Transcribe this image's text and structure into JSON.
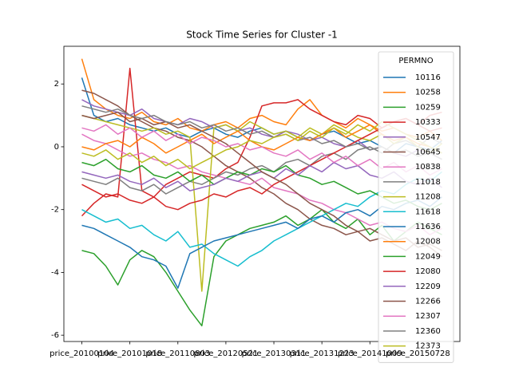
{
  "chart_data": {
    "type": "line",
    "title": "Stock Time Series for Cluster -1",
    "legend_title": "PERMNO",
    "legend": "upper right",
    "x": [
      0,
      50,
      100,
      150,
      200,
      250,
      300,
      350,
      400,
      450,
      500,
      550,
      600,
      650,
      700,
      750,
      800,
      850,
      900,
      950,
      1000,
      1050,
      1100,
      1150,
      1200,
      1250,
      1300,
      1350,
      1400,
      1450,
      1500
    ],
    "xlim": [
      -75,
      1575
    ],
    "xticks": [
      {
        "value": 0,
        "label": "price_20100104"
      },
      {
        "value": 200,
        "label": "price_20101018"
      },
      {
        "value": 400,
        "label": "price_20110803"
      },
      {
        "value": 600,
        "label": "price_20120521"
      },
      {
        "value": 800,
        "label": "price_20130311"
      },
      {
        "value": 1000,
        "label": "price_20131223"
      },
      {
        "value": 1200,
        "label": "price_20141009"
      },
      {
        "value": 1400,
        "label": "price_20150728"
      }
    ],
    "ylim": [
      -6.2,
      3.2
    ],
    "yticks": [
      -6,
      -4,
      -2,
      0,
      2
    ],
    "series": [
      {
        "name": "10116",
        "color": "#1f77b4",
        "values": [
          2.2,
          1.0,
          0.8,
          0.9,
          0.7,
          0.6,
          0.5,
          0.6,
          0.4,
          0.3,
          0.5,
          0.6,
          0.4,
          0.3,
          0.5,
          0.6,
          0.4,
          0.5,
          0.3,
          0.2,
          0.4,
          0.5,
          0.3,
          0.1,
          0.2,
          0.0,
          -0.2,
          0.1,
          0.0,
          -0.1,
          0.2
        ]
      },
      {
        "name": "10258",
        "color": "#ff7f0e",
        "values": [
          2.8,
          1.5,
          1.2,
          1.0,
          0.9,
          1.1,
          0.8,
          0.7,
          0.9,
          0.6,
          0.5,
          0.7,
          0.8,
          0.6,
          0.9,
          1.0,
          0.8,
          0.7,
          1.2,
          1.5,
          1.0,
          0.8,
          0.6,
          0.9,
          0.7,
          0.5,
          0.6,
          0.4,
          0.3,
          0.5,
          0.2
        ]
      },
      {
        "name": "10259",
        "color": "#2ca02c",
        "values": [
          -3.3,
          -3.4,
          -3.8,
          -4.4,
          -3.6,
          -3.3,
          -3.5,
          -4.0,
          -4.6,
          -5.2,
          -5.7,
          -3.5,
          -3.0,
          -2.8,
          -2.6,
          -2.5,
          -2.4,
          -2.2,
          -2.5,
          -2.3,
          -2.0,
          -2.4,
          -2.6,
          -2.3,
          -2.8,
          -2.5,
          -3.0,
          -2.7,
          -2.4,
          -2.6,
          -2.8
        ]
      },
      {
        "name": "10333",
        "color": "#d62728",
        "values": [
          -2.2,
          -1.8,
          -1.5,
          -1.6,
          2.5,
          -1.4,
          -1.6,
          -1.2,
          -1.0,
          -0.8,
          -0.9,
          -1.0,
          -0.7,
          -0.5,
          0.3,
          1.3,
          1.4,
          1.4,
          1.5,
          1.2,
          1.0,
          0.8,
          0.7,
          1.0,
          0.9,
          0.6,
          0.8,
          0.9,
          0.7,
          0.5,
          0.6
        ]
      },
      {
        "name": "10547",
        "color": "#9467bd",
        "values": [
          1.5,
          1.3,
          1.2,
          1.1,
          1.0,
          1.2,
          0.9,
          0.8,
          0.7,
          0.9,
          0.8,
          0.6,
          0.7,
          0.5,
          0.6,
          0.4,
          0.3,
          0.5,
          0.4,
          0.2,
          0.3,
          0.1,
          0.0,
          0.2,
          -0.1,
          0.0,
          -0.2,
          -0.3,
          -0.1,
          -0.2,
          -0.4
        ]
      },
      {
        "name": "10645",
        "color": "#8c564b",
        "values": [
          1.8,
          1.7,
          1.5,
          1.3,
          1.0,
          0.8,
          0.6,
          0.5,
          0.3,
          0.2,
          0.0,
          -0.3,
          -0.6,
          -0.8,
          -1.0,
          -1.3,
          -1.5,
          -1.8,
          -2.0,
          -2.3,
          -2.5,
          -2.6,
          -2.8,
          -2.7,
          -3.0,
          -2.9,
          -3.1,
          -3.3,
          -3.0,
          -3.2,
          -3.5
        ]
      },
      {
        "name": "10838",
        "color": "#e377c2",
        "values": [
          0.4,
          0.2,
          0.1,
          -0.1,
          -0.3,
          -0.2,
          -0.4,
          -0.5,
          -0.7,
          -0.6,
          -0.8,
          -0.9,
          -1.0,
          -1.1,
          -1.2,
          -1.0,
          -1.3,
          -1.4,
          -1.5,
          -1.7,
          -1.8,
          -2.0,
          -2.1,
          -2.3,
          -2.5,
          -2.4,
          -2.6,
          -2.7,
          -2.5,
          -2.8,
          -2.6
        ]
      },
      {
        "name": "11018",
        "color": "#7f7f7f",
        "values": [
          -1.0,
          -1.1,
          -1.2,
          -1.0,
          -1.3,
          -1.4,
          -1.2,
          -1.5,
          -1.3,
          -1.1,
          -1.2,
          -1.0,
          -0.8,
          -0.9,
          -0.7,
          -0.6,
          -0.8,
          -0.5,
          -0.4,
          -0.6,
          -0.3,
          -0.2,
          -0.4,
          -0.1,
          0.0,
          -0.2,
          0.1,
          0.2,
          0.0,
          0.3,
          0.1
        ]
      },
      {
        "name": "11208",
        "color": "#bcbd22",
        "values": [
          1.0,
          0.9,
          0.8,
          0.7,
          0.6,
          0.5,
          0.6,
          0.4,
          0.5,
          0.3,
          -4.6,
          0.6,
          0.7,
          0.5,
          0.8,
          0.6,
          0.4,
          0.5,
          0.3,
          0.6,
          0.4,
          0.7,
          0.5,
          0.3,
          0.2,
          0.4,
          0.1,
          0.3,
          0.0,
          -0.2,
          0.1
        ]
      },
      {
        "name": "11618",
        "color": "#17becf",
        "values": [
          -2.0,
          -2.2,
          -2.4,
          -2.3,
          -2.6,
          -2.5,
          -2.8,
          -3.0,
          -2.7,
          -3.2,
          -3.1,
          -3.4,
          -3.6,
          -3.8,
          -3.5,
          -3.3,
          -3.0,
          -2.8,
          -2.6,
          -2.4,
          -2.2,
          -2.0,
          -1.8,
          -1.9,
          -1.6,
          -1.4,
          -1.5,
          -1.2,
          -1.0,
          -1.1,
          -0.8
        ]
      },
      {
        "name": "11636",
        "color": "#1f77b4",
        "values": [
          -2.5,
          -2.6,
          -2.8,
          -3.0,
          -3.2,
          -3.5,
          -3.6,
          -3.8,
          -4.5,
          -3.4,
          -3.2,
          -3.0,
          -2.9,
          -2.8,
          -2.7,
          -2.6,
          -2.5,
          -2.4,
          -2.6,
          -2.3,
          -2.2,
          -2.4,
          -2.1,
          -2.0,
          -2.2,
          -1.9,
          -2.0,
          -1.8,
          -1.7,
          -1.9,
          -1.6
        ]
      },
      {
        "name": "12008",
        "color": "#ff7f0e",
        "values": [
          0.0,
          -0.1,
          0.1,
          0.2,
          0.0,
          0.3,
          0.1,
          -0.2,
          0.0,
          0.2,
          0.4,
          0.1,
          0.3,
          0.5,
          0.2,
          0.0,
          -0.1,
          0.1,
          0.3,
          0.2,
          0.4,
          0.6,
          0.3,
          0.5,
          0.7,
          0.4,
          0.2,
          0.3,
          0.1,
          0.0,
          -0.2
        ]
      },
      {
        "name": "12049",
        "color": "#2ca02c",
        "values": [
          -0.5,
          -0.6,
          -0.4,
          -0.7,
          -0.8,
          -0.6,
          -0.9,
          -1.0,
          -0.8,
          -1.1,
          -0.9,
          -1.2,
          -1.0,
          -0.8,
          -0.9,
          -0.7,
          -0.8,
          -0.6,
          -0.9,
          -1.0,
          -1.2,
          -1.1,
          -1.3,
          -1.5,
          -1.4,
          -1.6,
          -1.8,
          -1.7,
          -1.9,
          -2.0,
          -1.8
        ]
      },
      {
        "name": "12080",
        "color": "#d62728",
        "values": [
          -1.2,
          -1.4,
          -1.6,
          -1.5,
          -1.7,
          -1.8,
          -1.6,
          -1.9,
          -2.0,
          -1.8,
          -1.7,
          -1.5,
          -1.6,
          -1.4,
          -1.3,
          -1.5,
          -1.2,
          -1.0,
          -0.8,
          -0.6,
          -0.4,
          -0.2,
          0.0,
          0.2,
          0.4,
          0.6,
          0.8,
          0.9,
          0.7,
          1.0,
          1.1
        ]
      },
      {
        "name": "12209",
        "color": "#9467bd",
        "values": [
          -0.8,
          -0.9,
          -1.0,
          -0.9,
          -1.1,
          -1.2,
          -1.0,
          -1.3,
          -1.1,
          -1.4,
          -1.3,
          -1.2,
          -1.0,
          -1.1,
          -0.9,
          -0.8,
          -1.0,
          -0.7,
          -0.9,
          -0.6,
          -0.8,
          -0.5,
          -0.7,
          -0.6,
          -0.9,
          -1.0,
          -0.8,
          -1.1,
          -1.2,
          -1.0,
          -1.3
        ]
      },
      {
        "name": "12266",
        "color": "#8c564b",
        "values": [
          1.0,
          0.9,
          1.0,
          1.1,
          0.8,
          0.9,
          0.7,
          0.8,
          0.6,
          0.7,
          0.5,
          0.3,
          0.1,
          -0.2,
          -0.5,
          -0.8,
          -1.0,
          -1.2,
          -1.5,
          -1.8,
          -2.0,
          -2.2,
          -2.5,
          -2.7,
          -2.6,
          -2.8,
          -3.0,
          -2.9,
          -3.2,
          -3.1,
          -3.3
        ]
      },
      {
        "name": "12307",
        "color": "#e377c2",
        "values": [
          0.6,
          0.5,
          0.7,
          0.4,
          0.6,
          0.3,
          0.5,
          0.2,
          0.4,
          0.1,
          0.3,
          0.2,
          0.0,
          0.1,
          -0.1,
          0.0,
          -0.2,
          -0.3,
          -0.1,
          -0.4,
          -0.2,
          -0.5,
          -0.3,
          -0.6,
          -0.4,
          -0.7,
          -0.5,
          -0.8,
          -0.6,
          -0.9,
          -0.7
        ]
      },
      {
        "name": "12360",
        "color": "#7f7f7f",
        "values": [
          1.3,
          1.2,
          1.1,
          1.2,
          1.0,
          0.9,
          1.0,
          0.8,
          0.7,
          0.8,
          0.6,
          0.7,
          0.5,
          0.6,
          0.4,
          0.5,
          0.3,
          0.4,
          0.2,
          0.3,
          0.1,
          0.2,
          0.0,
          0.1,
          -0.1,
          0.0,
          -0.2,
          -0.1,
          -0.3,
          -0.2,
          -0.4
        ]
      },
      {
        "name": "12373",
        "color": "#bcbd22",
        "values": [
          -0.2,
          -0.3,
          -0.1,
          -0.4,
          -0.2,
          -0.5,
          -0.3,
          -0.6,
          -0.4,
          -0.7,
          -0.5,
          -0.3,
          -0.1,
          0.0,
          0.2,
          0.1,
          0.3,
          0.4,
          0.2,
          0.5,
          0.3,
          0.6,
          0.4,
          0.7,
          0.5,
          0.8,
          0.6,
          0.4,
          0.2,
          0.0,
          -0.2
        ]
      }
    ]
  }
}
